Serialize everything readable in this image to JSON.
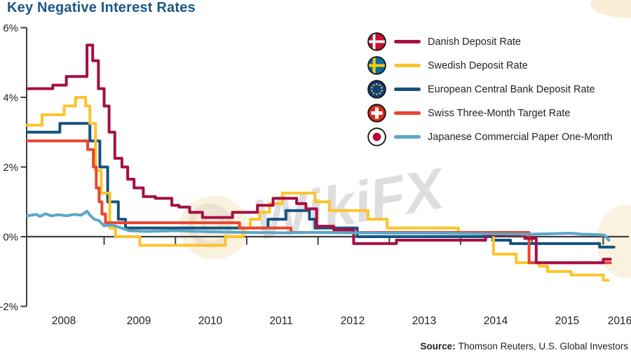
{
  "title": "Key Negative Interest Rates",
  "watermark": "WikiFX",
  "source": {
    "label": "Source:",
    "text": "Thomson Reuters, U.S. Global Investors"
  },
  "colors": {
    "title": "#1b5786",
    "axis": "#3f3f3f",
    "text": "#231f20",
    "watermark": "#bcbcbc",
    "blob": "#f8eed6"
  },
  "chart_data": {
    "type": "line",
    "title": "Key Negative Interest Rates",
    "xlabel": "",
    "ylabel": "%",
    "ylim": [
      -2,
      6
    ],
    "xlim": [
      2007.9,
      2016.35
    ],
    "grid": false,
    "legend_position": "top-right",
    "y_ticks": [
      "6%",
      "4%",
      "2%",
      "0%",
      "-2%"
    ],
    "y_tick_values": [
      6,
      4,
      2,
      0,
      -2
    ],
    "x_tick_labels": [
      "2008",
      "2009",
      "2010",
      "2011",
      "2012",
      "2013",
      "2014",
      "2015",
      "2016"
    ],
    "x_tick_years": [
      2008,
      2009,
      2010,
      2011,
      2012,
      2013,
      2014,
      2015,
      2016
    ],
    "series": [
      {
        "name": "Danish Deposit Rate",
        "id": "danish-deposit-rate",
        "icon": "denmark-flag-icon",
        "color": "#a60f45",
        "interpolation": "step",
        "points": [
          [
            2007.92,
            4.25
          ],
          [
            2008.28,
            4.35
          ],
          [
            2008.47,
            4.6
          ],
          [
            2008.76,
            5.5
          ],
          [
            2008.84,
            5.05
          ],
          [
            2008.92,
            4.25
          ],
          [
            2009.0,
            3.75
          ],
          [
            2009.07,
            3.0
          ],
          [
            2009.15,
            2.25
          ],
          [
            2009.25,
            2.0
          ],
          [
            2009.33,
            1.65
          ],
          [
            2009.42,
            1.4
          ],
          [
            2009.55,
            1.15
          ],
          [
            2009.72,
            1.1
          ],
          [
            2009.95,
            0.9
          ],
          [
            2010.05,
            0.85
          ],
          [
            2010.2,
            0.7
          ],
          [
            2010.38,
            0.55
          ],
          [
            2010.8,
            0.7
          ],
          [
            2011.15,
            0.9
          ],
          [
            2011.37,
            1.1
          ],
          [
            2011.7,
            0.95
          ],
          [
            2011.83,
            0.8
          ],
          [
            2011.98,
            0.3
          ],
          [
            2012.22,
            0.2
          ],
          [
            2012.5,
            -0.2
          ],
          [
            2013.1,
            -0.1
          ],
          [
            2014.35,
            0.05
          ],
          [
            2014.9,
            -0.05
          ],
          [
            2015.06,
            -0.75
          ],
          [
            2016.0,
            -0.65
          ],
          [
            2016.1,
            -0.65
          ]
        ]
      },
      {
        "name": "Swedish Deposit Rate",
        "id": "swedish-deposit-rate",
        "icon": "sweden-flag-icon",
        "color": "#fcc32c",
        "interpolation": "step",
        "points": [
          [
            2007.92,
            3.2
          ],
          [
            2008.13,
            3.5
          ],
          [
            2008.44,
            3.75
          ],
          [
            2008.6,
            4.0
          ],
          [
            2008.74,
            3.75
          ],
          [
            2008.8,
            3.25
          ],
          [
            2008.88,
            1.9
          ],
          [
            2008.96,
            1.25
          ],
          [
            2009.08,
            0.25
          ],
          [
            2009.16,
            0.0
          ],
          [
            2009.5,
            -0.25
          ],
          [
            2010.7,
            0.0
          ],
          [
            2010.95,
            0.25
          ],
          [
            2011.05,
            0.5
          ],
          [
            2011.18,
            0.7
          ],
          [
            2011.32,
            0.95
          ],
          [
            2011.5,
            1.25
          ],
          [
            2011.96,
            1.0
          ],
          [
            2012.16,
            0.75
          ],
          [
            2012.7,
            0.5
          ],
          [
            2012.97,
            0.25
          ],
          [
            2013.97,
            0.1
          ],
          [
            2014.46,
            -0.5
          ],
          [
            2014.78,
            -0.75
          ],
          [
            2015.1,
            -0.85
          ],
          [
            2015.22,
            -1.0
          ],
          [
            2015.55,
            -1.1
          ],
          [
            2016.0,
            -1.25
          ],
          [
            2016.07,
            -1.25
          ]
        ]
      },
      {
        "name": "European Central Bank Deposit Rate",
        "id": "ecb-deposit-rate",
        "icon": "eu-flag-icon",
        "color": "#15537e",
        "interpolation": "step",
        "points": [
          [
            2007.92,
            3.0
          ],
          [
            2008.38,
            3.25
          ],
          [
            2008.8,
            2.75
          ],
          [
            2008.94,
            2.0
          ],
          [
            2009.05,
            1.0
          ],
          [
            2009.2,
            0.5
          ],
          [
            2009.3,
            0.25
          ],
          [
            2011.3,
            0.5
          ],
          [
            2011.55,
            0.75
          ],
          [
            2011.88,
            0.5
          ],
          [
            2011.96,
            0.25
          ],
          [
            2012.55,
            0.0
          ],
          [
            2014.45,
            -0.1
          ],
          [
            2014.7,
            -0.2
          ],
          [
            2015.95,
            -0.3
          ],
          [
            2016.15,
            -0.3
          ]
        ]
      },
      {
        "name": "Swiss Three-Month Target Rate",
        "id": "swiss-three-month-target-rate",
        "icon": "switzerland-flag-icon",
        "color": "#e8462e",
        "interpolation": "step",
        "points": [
          [
            2007.92,
            2.75
          ],
          [
            2008.77,
            2.5
          ],
          [
            2008.85,
            2.0
          ],
          [
            2008.89,
            1.4
          ],
          [
            2008.93,
            1.0
          ],
          [
            2008.97,
            0.65
          ],
          [
            2009.02,
            0.4
          ],
          [
            2010.9,
            0.25
          ],
          [
            2011.62,
            0.12
          ],
          [
            2014.96,
            -0.75
          ],
          [
            2016.1,
            -0.75
          ]
        ]
      },
      {
        "name": "Japanese Commercial Paper One-Month",
        "id": "japanese-commercial-paper-one-month",
        "icon": "japan-flag-icon",
        "color": "#5ca6c9",
        "interpolation": "linear",
        "points": [
          [
            2007.92,
            0.6
          ],
          [
            2008.05,
            0.64
          ],
          [
            2008.1,
            0.58
          ],
          [
            2008.18,
            0.66
          ],
          [
            2008.26,
            0.6
          ],
          [
            2008.36,
            0.63
          ],
          [
            2008.48,
            0.6
          ],
          [
            2008.58,
            0.64
          ],
          [
            2008.68,
            0.62
          ],
          [
            2008.76,
            0.73
          ],
          [
            2008.8,
            0.62
          ],
          [
            2008.86,
            0.5
          ],
          [
            2008.93,
            0.46
          ],
          [
            2009.0,
            0.31
          ],
          [
            2009.1,
            0.34
          ],
          [
            2009.2,
            0.28
          ],
          [
            2009.35,
            0.17
          ],
          [
            2009.6,
            0.15
          ],
          [
            2010.0,
            0.17
          ],
          [
            2010.5,
            0.14
          ],
          [
            2011.0,
            0.12
          ],
          [
            2011.5,
            0.11
          ],
          [
            2012.0,
            0.12
          ],
          [
            2012.5,
            0.11
          ],
          [
            2013.0,
            0.1
          ],
          [
            2013.5,
            0.1
          ],
          [
            2014.0,
            0.09
          ],
          [
            2014.5,
            0.08
          ],
          [
            2015.0,
            0.07
          ],
          [
            2015.55,
            0.1
          ],
          [
            2015.7,
            0.07
          ],
          [
            2015.9,
            0.06
          ],
          [
            2016.02,
            0.04
          ],
          [
            2016.08,
            -0.1
          ]
        ]
      }
    ]
  }
}
